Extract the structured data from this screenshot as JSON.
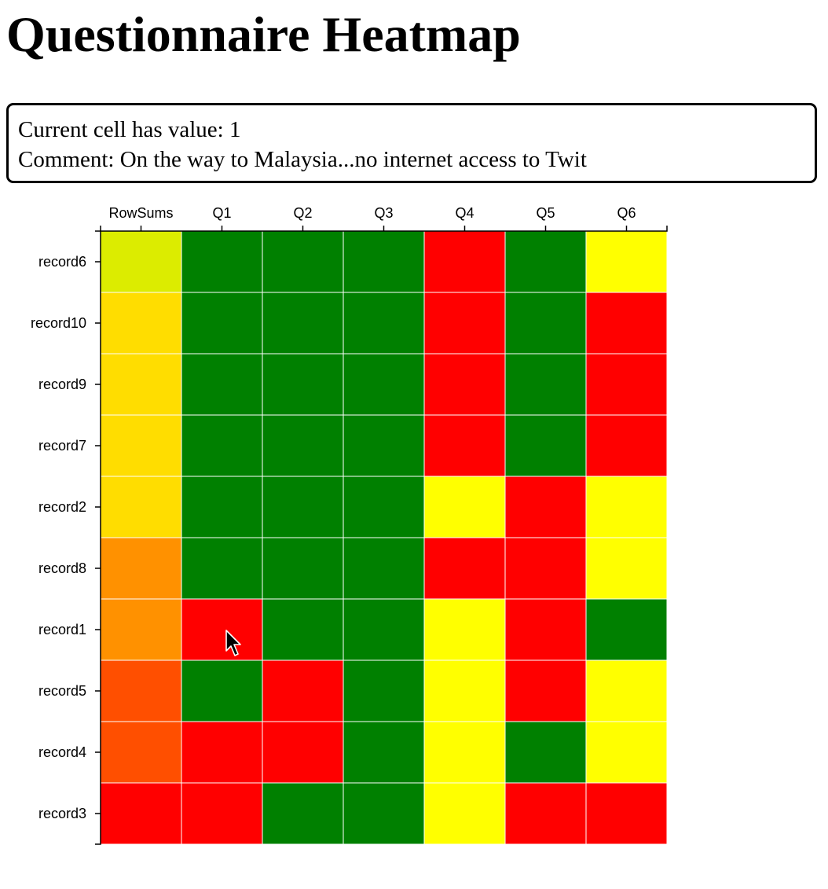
{
  "page": {
    "title": "Questionnaire Heatmap"
  },
  "info": {
    "value_line": "Current cell has value: 1",
    "comment_line": "Comment: On the way to Malaysia...no internet access to Twit"
  },
  "colors": {
    "green": "#008000",
    "red": "#ff0000",
    "yellow": "#ffff00",
    "gridline": "#ffffff",
    "axis": "#000000"
  },
  "chart_data": {
    "type": "heatmap",
    "title": "",
    "columns": [
      "RowSums",
      "Q1",
      "Q2",
      "Q3",
      "Q4",
      "Q5",
      "Q6"
    ],
    "rows": [
      "record6",
      "record10",
      "record9",
      "record7",
      "record2",
      "record8",
      "record1",
      "record5",
      "record4",
      "record3"
    ],
    "value_colors": {
      "1": "#ff0000",
      "2": "#ffff00",
      "3": "#008000"
    },
    "question_values": [
      [
        3,
        3,
        3,
        1,
        3,
        2
      ],
      [
        3,
        3,
        3,
        1,
        3,
        1
      ],
      [
        3,
        3,
        3,
        1,
        3,
        1
      ],
      [
        3,
        3,
        3,
        1,
        3,
        1
      ],
      [
        3,
        3,
        3,
        2,
        1,
        2
      ],
      [
        3,
        3,
        3,
        1,
        1,
        2
      ],
      [
        1,
        3,
        3,
        2,
        1,
        3
      ],
      [
        3,
        1,
        3,
        2,
        1,
        2
      ],
      [
        1,
        1,
        3,
        2,
        3,
        2
      ],
      [
        1,
        3,
        3,
        2,
        1,
        1
      ]
    ],
    "row_sums": [
      15,
      14,
      14,
      14,
      14,
      13,
      13,
      12,
      12,
      11
    ],
    "row_sum_colors": [
      "#dcec00",
      "#ffdd00",
      "#ffdd00",
      "#ffdd00",
      "#ffdd00",
      "#ff9100",
      "#ff9100",
      "#ff4f00",
      "#ff4f00",
      "#ff0000"
    ],
    "x_axis_position": "top",
    "y_axis_position": "left",
    "grid": true,
    "legend": "none"
  },
  "cursor": {
    "icon": "arrow-pointer-icon",
    "over_row": "record1",
    "over_column": "Q1"
  }
}
